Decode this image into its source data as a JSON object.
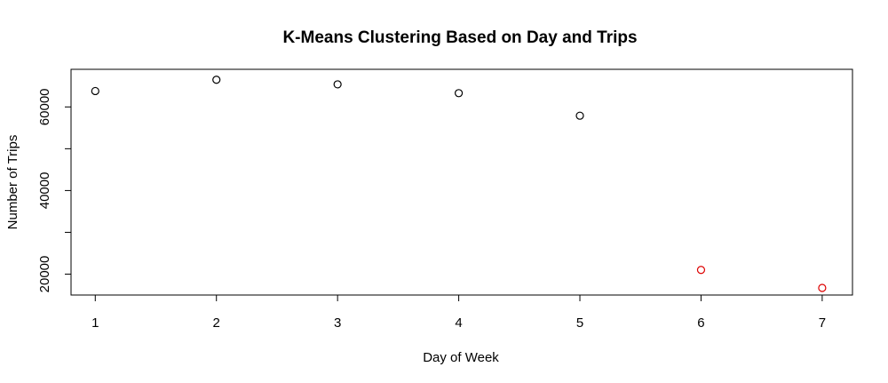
{
  "chart_data": {
    "type": "scatter",
    "title": "K-Means Clustering Based on Day and Trips",
    "xlabel": "Day of Week",
    "ylabel": "Number of Trips",
    "xlim": [
      0.8,
      7.25
    ],
    "ylim": [
      15000,
      69000
    ],
    "xticks": [
      1,
      2,
      3,
      4,
      5,
      6,
      7
    ],
    "yticks": [
      20000,
      40000,
      60000
    ],
    "ytick_labels": [
      "20000",
      "40000",
      "60000"
    ],
    "grid": false,
    "legend": "none",
    "colors": {
      "cluster_1": "#000000",
      "cluster_2": "#dd0000"
    },
    "points": [
      {
        "x": 1,
        "y": 63800,
        "cluster": 1
      },
      {
        "x": 2,
        "y": 66500,
        "cluster": 1
      },
      {
        "x": 3,
        "y": 65400,
        "cluster": 1
      },
      {
        "x": 4,
        "y": 63300,
        "cluster": 1
      },
      {
        "x": 5,
        "y": 57900,
        "cluster": 1
      },
      {
        "x": 6,
        "y": 21000,
        "cluster": 2
      },
      {
        "x": 7,
        "y": 16700,
        "cluster": 2
      }
    ]
  }
}
